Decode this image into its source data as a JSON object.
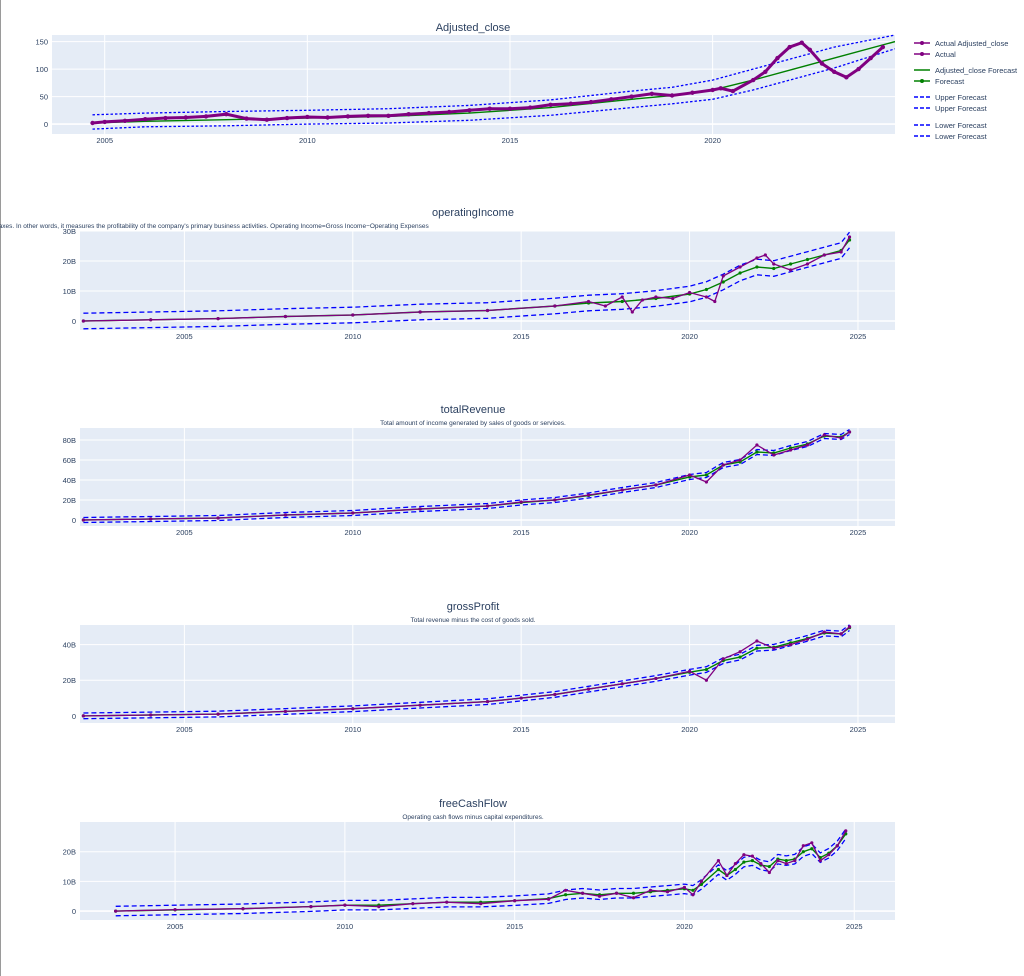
{
  "chart_data": [
    {
      "type": "line",
      "title": "Adjusted_close",
      "subtitle": "",
      "xlim": [
        2003.7,
        2024.5
      ],
      "ylim": [
        -18,
        162
      ],
      "yticks": [
        {
          "v": 0,
          "label": "0"
        },
        {
          "v": 50,
          "label": "50"
        },
        {
          "v": 100,
          "label": "100"
        },
        {
          "v": 150,
          "label": "150"
        }
      ],
      "xticks": [
        {
          "v": 2005,
          "label": "2005"
        },
        {
          "v": 2010,
          "label": "2010"
        },
        {
          "v": 2015,
          "label": "2015"
        },
        {
          "v": 2020,
          "label": "2020"
        }
      ],
      "actual": {
        "name": "Actual Adjusted_close",
        "x": [
          2004.7,
          2005.0,
          2005.5,
          2006.0,
          2006.5,
          2007.0,
          2007.5,
          2008.0,
          2008.5,
          2009.0,
          2009.5,
          2010.0,
          2010.5,
          2011.0,
          2011.5,
          2012.0,
          2012.5,
          2013.0,
          2013.5,
          2014.0,
          2014.5,
          2015.0,
          2015.5,
          2016.0,
          2016.5,
          2017.0,
          2017.5,
          2018.0,
          2018.5,
          2019.0,
          2019.5,
          2020.0,
          2020.2,
          2020.5,
          2021.0,
          2021.3,
          2021.6,
          2021.9,
          2022.2,
          2022.4,
          2022.7,
          2023.0,
          2023.3,
          2023.6,
          2023.9,
          2024.2
        ],
        "y": [
          2,
          4,
          6,
          9,
          11,
          12,
          14,
          18,
          10,
          8,
          11,
          13,
          12,
          14,
          15,
          15,
          18,
          20,
          22,
          25,
          28,
          28,
          30,
          35,
          37,
          40,
          45,
          50,
          55,
          52,
          57,
          62,
          65,
          60,
          80,
          95,
          120,
          140,
          148,
          135,
          110,
          95,
          85,
          100,
          120,
          140
        ]
      },
      "forecast": {
        "name": "Adjusted_close Forecast",
        "x": [
          2004.7,
          2006.0,
          2008.0,
          2010.0,
          2012.0,
          2014.0,
          2016.0,
          2018.0,
          2019.0,
          2020.0,
          2021.0,
          2022.0,
          2023.0,
          2024.5
        ],
        "y": [
          2,
          5,
          8,
          11,
          14,
          20,
          30,
          45,
          52,
          62,
          80,
          100,
          120,
          150
        ]
      },
      "upper": {
        "name": "Upper Forecast",
        "x": [
          2004.7,
          2006.0,
          2008.0,
          2010.0,
          2012.0,
          2014.0,
          2016.0,
          2018.0,
          2019.0,
          2020.0,
          2021.0,
          2022.0,
          2023.0,
          2024.5
        ],
        "y": [
          17,
          20,
          23,
          25,
          28,
          34,
          44,
          60,
          67,
          80,
          100,
          120,
          140,
          162
        ]
      },
      "lower": {
        "name": "Lower Forecast",
        "x": [
          2004.7,
          2006.0,
          2008.0,
          2010.0,
          2012.0,
          2014.0,
          2016.0,
          2018.0,
          2019.0,
          2020.0,
          2021.0,
          2022.0,
          2023.0,
          2024.5
        ],
        "y": [
          -9,
          -5,
          -3,
          0,
          2,
          7,
          16,
          30,
          37,
          45,
          62,
          82,
          102,
          137
        ]
      }
    },
    {
      "type": "line",
      "title": "operatingIncome",
      "subtitle": "a company generates from its core business operations, excluding any income or expenses from non-operating activities, interest payments, and taxes. In other words, it measures the profitability of the company's primary business activities. Operating Income=Gross Income−Operating Expenses",
      "xlim": [
        2001.9,
        2026.1
      ],
      "ylim": [
        -3000000000,
        30000000000
      ],
      "yticks": [
        {
          "v": 0,
          "label": "0"
        },
        {
          "v": 10000000000,
          "label": "10B"
        },
        {
          "v": 20000000000,
          "label": "20B"
        },
        {
          "v": 30000000000,
          "label": "30B"
        }
      ],
      "xticks": [
        {
          "v": 2005,
          "label": "2005"
        },
        {
          "v": 2010,
          "label": "2010"
        },
        {
          "v": 2015,
          "label": "2015"
        },
        {
          "v": 2020,
          "label": "2020"
        },
        {
          "v": 2025,
          "label": "2025"
        }
      ],
      "band": 2600000000,
      "actual": {
        "name": "Actual",
        "x": [
          2002.0,
          2004.0,
          2006.0,
          2008.0,
          2010.0,
          2012.0,
          2014.0,
          2016.0,
          2017.0,
          2017.5,
          2018.0,
          2018.3,
          2018.6,
          2019.0,
          2019.5,
          2020.0,
          2020.5,
          2020.75,
          2021.0,
          2021.5,
          2022.0,
          2022.25,
          2022.5,
          2023.0,
          2023.5,
          2024.0,
          2024.5,
          2024.75
        ],
        "y": [
          0,
          400000000,
          800000000,
          1500000000,
          2000000000,
          3000000000,
          3500000000,
          5000000000,
          6500000000,
          5000000000,
          8000000000,
          3000000000,
          7000000000,
          8000000000,
          7500000000,
          9500000000,
          8000000000,
          6500000000,
          15000000000,
          18000000000,
          21000000000,
          22000000000,
          19000000000,
          17000000000,
          19000000000,
          22000000000,
          23000000000,
          28000000000
        ]
      },
      "forecast": {
        "name": "Forecast",
        "x": [
          2002.0,
          2004.0,
          2006.0,
          2008.0,
          2010.0,
          2012.0,
          2014.0,
          2016.0,
          2017.0,
          2018.0,
          2019.0,
          2020.0,
          2020.5,
          2021.0,
          2021.5,
          2022.0,
          2022.5,
          2023.0,
          2023.5,
          2024.0,
          2024.5,
          2024.75
        ],
        "y": [
          0,
          400000000,
          800000000,
          1500000000,
          2000000000,
          3000000000,
          3500000000,
          5000000000,
          6000000000,
          6500000000,
          7500000000,
          9000000000,
          10500000000,
          13000000000,
          16000000000,
          18000000000,
          17500000000,
          19000000000,
          20500000000,
          22000000000,
          23500000000,
          27000000000
        ]
      }
    },
    {
      "type": "line",
      "title": "totalRevenue",
      "subtitle": "Total amount of income generated by sales of goods or services.",
      "xlim": [
        2001.9,
        2026.1
      ],
      "ylim": [
        -6000000000,
        92000000000
      ],
      "yticks": [
        {
          "v": 0,
          "label": "0"
        },
        {
          "v": 20000000000,
          "label": "20B"
        },
        {
          "v": 40000000000,
          "label": "40B"
        },
        {
          "v": 60000000000,
          "label": "60B"
        },
        {
          "v": 80000000000,
          "label": "80B"
        }
      ],
      "xticks": [
        {
          "v": 2005,
          "label": "2005"
        },
        {
          "v": 2010,
          "label": "2010"
        },
        {
          "v": 2015,
          "label": "2015"
        },
        {
          "v": 2020,
          "label": "2020"
        },
        {
          "v": 2025,
          "label": "2025"
        }
      ],
      "band": 2500000000,
      "actual": {
        "name": "Actual",
        "x": [
          2002.0,
          2004.0,
          2006.0,
          2008.0,
          2010.0,
          2012.0,
          2014.0,
          2015.0,
          2016.0,
          2017.0,
          2018.0,
          2019.0,
          2020.0,
          2020.5,
          2021.0,
          2021.5,
          2022.0,
          2022.5,
          2023.0,
          2023.5,
          2024.0,
          2024.5,
          2024.75
        ],
        "y": [
          0,
          1000000000,
          2000000000,
          5000000000,
          7000000000,
          11000000000,
          14000000000,
          18000000000,
          20000000000,
          25000000000,
          30000000000,
          35000000000,
          45000000000,
          38000000000,
          55000000000,
          60000000000,
          75000000000,
          65000000000,
          70000000000,
          75000000000,
          85000000000,
          82000000000,
          88000000000
        ]
      },
      "forecast": {
        "name": "Forecast",
        "x": [
          2002.0,
          2004.0,
          2006.0,
          2008.0,
          2010.0,
          2012.0,
          2014.0,
          2015.0,
          2016.0,
          2017.0,
          2018.0,
          2019.0,
          2020.0,
          2020.5,
          2021.0,
          2021.5,
          2022.0,
          2022.5,
          2023.0,
          2023.5,
          2024.0,
          2024.5,
          2024.75
        ],
        "y": [
          0,
          1000000000,
          2000000000,
          5000000000,
          7000000000,
          11000000000,
          14000000000,
          17500000000,
          20000000000,
          24500000000,
          30000000000,
          35000000000,
          43000000000,
          45000000000,
          55000000000,
          58000000000,
          68000000000,
          67000000000,
          72000000000,
          76000000000,
          84000000000,
          83000000000,
          88000000000
        ]
      }
    },
    {
      "type": "line",
      "title": "grossProfit",
      "subtitle": "Total revenue minus the cost of goods sold.",
      "xlim": [
        2001.9,
        2026.1
      ],
      "ylim": [
        -4000000000,
        51000000000
      ],
      "yticks": [
        {
          "v": 0,
          "label": "0"
        },
        {
          "v": 20000000000,
          "label": "20B"
        },
        {
          "v": 40000000000,
          "label": "40B"
        }
      ],
      "xticks": [
        {
          "v": 2005,
          "label": "2005"
        },
        {
          "v": 2010,
          "label": "2010"
        },
        {
          "v": 2015,
          "label": "2015"
        },
        {
          "v": 2020,
          "label": "2020"
        },
        {
          "v": 2025,
          "label": "2025"
        }
      ],
      "band": 1600000000,
      "actual": {
        "name": "Actual",
        "x": [
          2002.0,
          2004.0,
          2006.0,
          2008.0,
          2010.0,
          2012.0,
          2014.0,
          2015.0,
          2016.0,
          2017.0,
          2018.0,
          2019.0,
          2020.0,
          2020.5,
          2021.0,
          2021.5,
          2022.0,
          2022.5,
          2023.0,
          2023.5,
          2024.0,
          2024.5,
          2024.75
        ],
        "y": [
          0,
          500000000,
          1000000000,
          2500000000,
          4000000000,
          6000000000,
          8000000000,
          10000000000,
          12000000000,
          15000000000,
          18000000000,
          21000000000,
          25000000000,
          20000000000,
          32000000000,
          36000000000,
          42000000000,
          38000000000,
          40000000000,
          43000000000,
          47000000000,
          46000000000,
          50000000000
        ]
      },
      "forecast": {
        "name": "Forecast",
        "x": [
          2002.0,
          2004.0,
          2006.0,
          2008.0,
          2010.0,
          2012.0,
          2014.0,
          2015.0,
          2016.0,
          2017.0,
          2018.0,
          2019.0,
          2020.0,
          2020.5,
          2021.0,
          2021.5,
          2022.0,
          2022.5,
          2023.0,
          2023.5,
          2024.0,
          2024.5,
          2024.75
        ],
        "y": [
          0,
          500000000,
          1000000000,
          2500000000,
          4000000000,
          6000000000,
          8000000000,
          10000000000,
          12000000000,
          15000000000,
          18000000000,
          21000000000,
          24500000000,
          26000000000,
          31000000000,
          33000000000,
          38000000000,
          38500000000,
          41000000000,
          43500000000,
          46500000000,
          46000000000,
          49500000000
        ]
      }
    },
    {
      "type": "line",
      "title": "freeCashFlow",
      "subtitle": "Operating cash flows minus capital expenditures.",
      "xlim": [
        2002.2,
        2026.2
      ],
      "ylim": [
        -3000000000,
        30000000000
      ],
      "yticks": [
        {
          "v": 0,
          "label": "0"
        },
        {
          "v": 10000000000,
          "label": "10B"
        },
        {
          "v": 20000000000,
          "label": "20B"
        }
      ],
      "xticks": [
        {
          "v": 2005,
          "label": "2005"
        },
        {
          "v": 2010,
          "label": "2010"
        },
        {
          "v": 2015,
          "label": "2015"
        },
        {
          "v": 2020,
          "label": "2020"
        },
        {
          "v": 2025,
          "label": "2025"
        }
      ],
      "band": 1600000000,
      "actual": {
        "name": "Actual",
        "x": [
          2003.25,
          2005.0,
          2007.0,
          2009.0,
          2010.0,
          2011.0,
          2012.0,
          2013.0,
          2014.0,
          2015.0,
          2016.0,
          2016.5,
          2017.0,
          2017.5,
          2018.0,
          2018.5,
          2019.0,
          2019.5,
          2020.0,
          2020.25,
          2020.5,
          2021.0,
          2021.25,
          2021.5,
          2021.75,
          2022.0,
          2022.25,
          2022.5,
          2022.75,
          2023.0,
          2023.25,
          2023.5,
          2023.75,
          2024.0,
          2024.25,
          2024.5,
          2024.75
        ],
        "y": [
          0,
          500000000,
          800000000,
          1500000000,
          2000000000,
          1500000000,
          2500000000,
          3000000000,
          2500000000,
          3500000000,
          4000000000,
          7000000000,
          6000000000,
          5000000000,
          6000000000,
          4500000000,
          7000000000,
          6500000000,
          8000000000,
          5500000000,
          10000000000,
          17000000000,
          12000000000,
          16000000000,
          19000000000,
          18500000000,
          16000000000,
          13000000000,
          17000000000,
          16000000000,
          17000000000,
          22000000000,
          23000000000,
          17000000000,
          19000000000,
          22000000000,
          27000000000
        ]
      },
      "forecast": {
        "name": "Forecast",
        "x": [
          2003.25,
          2005.0,
          2007.0,
          2009.0,
          2010.0,
          2011.0,
          2012.0,
          2013.0,
          2014.0,
          2015.0,
          2016.0,
          2016.5,
          2017.0,
          2017.5,
          2018.0,
          2018.5,
          2019.0,
          2019.5,
          2020.0,
          2020.25,
          2020.5,
          2021.0,
          2021.25,
          2021.5,
          2021.75,
          2022.0,
          2022.25,
          2022.5,
          2022.75,
          2023.0,
          2023.25,
          2023.5,
          2023.75,
          2024.0,
          2024.25,
          2024.5,
          2024.75
        ],
        "y": [
          0,
          400000000,
          800000000,
          1500000000,
          2000000000,
          2000000000,
          2500000000,
          3000000000,
          3000000000,
          3500000000,
          4200000000,
          5500000000,
          6000000000,
          5500000000,
          6000000000,
          6000000000,
          6500000000,
          7000000000,
          7500000000,
          7000000000,
          9000000000,
          14000000000,
          12000000000,
          14000000000,
          16500000000,
          17000000000,
          15500000000,
          15000000000,
          17500000000,
          17000000000,
          17500000000,
          20000000000,
          21000000000,
          18000000000,
          19500000000,
          22000000000,
          26000000000
        ]
      }
    }
  ],
  "legend": [
    {
      "label": "Actual Adjusted_close",
      "kind": "marker-line",
      "color": "#800080"
    },
    {
      "label": "Actual",
      "kind": "marker-line",
      "color": "#800080"
    },
    {
      "label": "Adjusted_close Forecast",
      "kind": "line",
      "color": "#008000"
    },
    {
      "label": "Forecast",
      "kind": "marker-line",
      "color": "#008000"
    },
    {
      "label": "Upper Forecast",
      "kind": "dash",
      "color": "#0000ff"
    },
    {
      "label": "Upper Forecast",
      "kind": "dash",
      "color": "#0000ff"
    },
    {
      "label": "Lower Forecast",
      "kind": "dash",
      "color": "#0000ff"
    },
    {
      "label": "Lower Forecast",
      "kind": "dash",
      "color": "#0000ff"
    }
  ],
  "colors": {
    "actual": "#800080",
    "forecast": "#008000",
    "bounds": "#0000ff",
    "plot_bg": "#e5ecf6",
    "grid": "#ffffff",
    "text": "#2a3f5f"
  }
}
